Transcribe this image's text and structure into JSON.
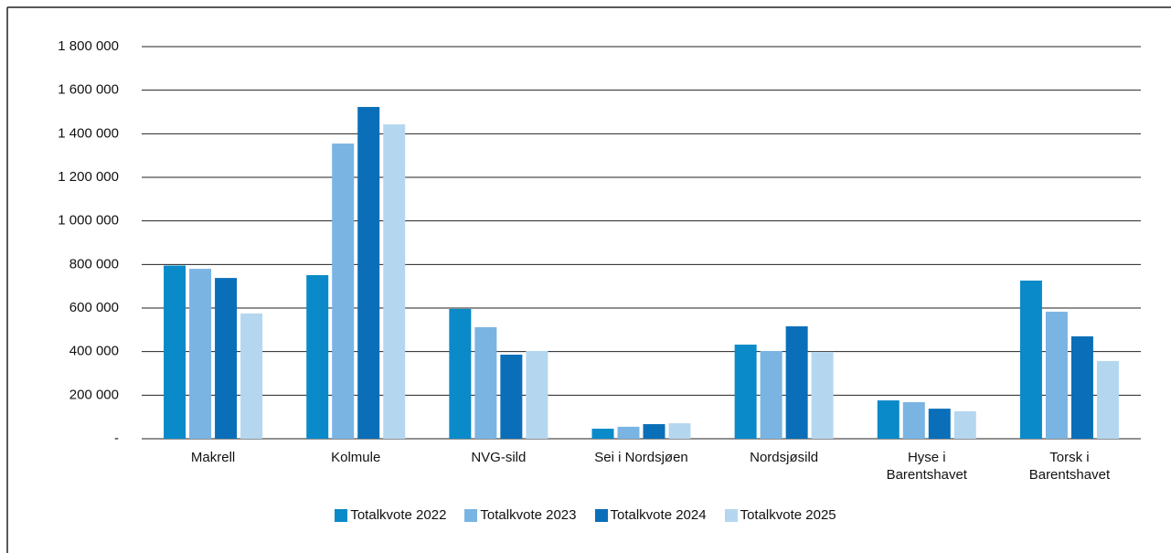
{
  "chart_data": {
    "type": "bar",
    "categories": [
      "Makrell",
      "Kolmule",
      "NVG-sild",
      "Sei i Nordsjøen",
      "Nordsjøsild",
      "Hyse i Barentshavet",
      "Torsk i Barentshavet"
    ],
    "series": [
      {
        "name": "Totalkvote 2022",
        "color": "#0a8ac9",
        "values": [
          795000,
          751000,
          596000,
          46000,
          432000,
          176000,
          726000
        ]
      },
      {
        "name": "Totalkvote 2023",
        "color": "#7ab4e3",
        "values": [
          780000,
          1355000,
          512000,
          55000,
          403000,
          168000,
          583000
        ]
      },
      {
        "name": "Totalkvote 2024",
        "color": "#0a6fb8",
        "values": [
          738000,
          1523000,
          386000,
          67000,
          516000,
          138000,
          470000
        ]
      },
      {
        "name": "Totalkvote 2025",
        "color": "#b4d7ef",
        "values": [
          575000,
          1443000,
          403000,
          71000,
          399000,
          126000,
          357000
        ]
      }
    ],
    "ylim": [
      0,
      1800000
    ],
    "yticks": [
      {
        "value": 0,
        "label": "-"
      },
      {
        "value": 200000,
        "label": "200 000"
      },
      {
        "value": 400000,
        "label": "400 000"
      },
      {
        "value": 600000,
        "label": "600 000"
      },
      {
        "value": 800000,
        "label": "800 000"
      },
      {
        "value": 1000000,
        "label": "1 000 000"
      },
      {
        "value": 1200000,
        "label": "1 200 000"
      },
      {
        "value": 1400000,
        "label": "1 400 000"
      },
      {
        "value": 1600000,
        "label": "1 600 000"
      },
      {
        "value": 1800000,
        "label": "1 800 000"
      }
    ],
    "grid": true,
    "legend": "bottom"
  }
}
